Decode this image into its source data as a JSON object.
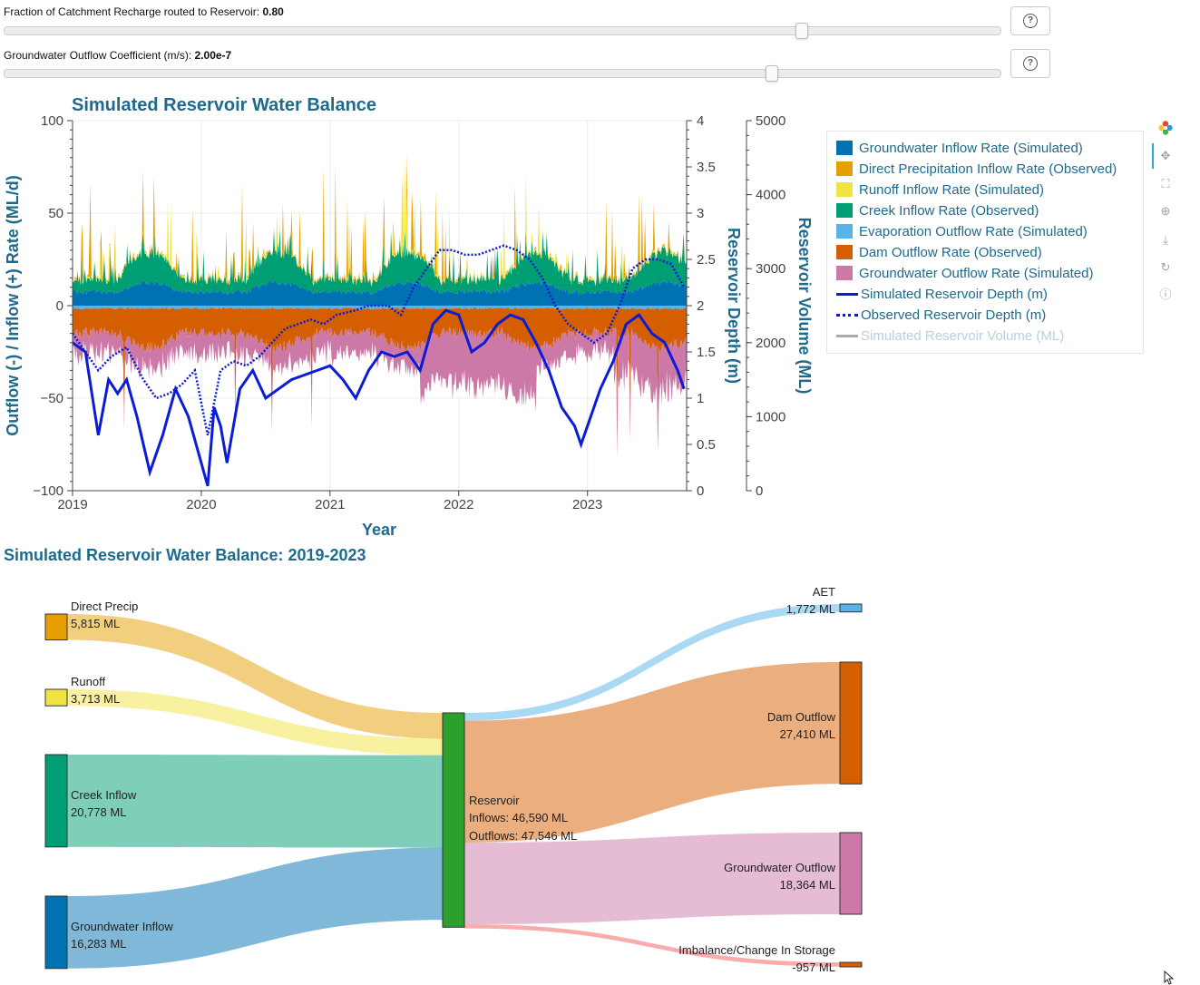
{
  "controls": {
    "slider1": {
      "label": "Fraction of Catchment Recharge routed to Reservoir:",
      "value": "0.80",
      "fraction": 0.8
    },
    "slider2": {
      "label": "Groundwater Outflow Coefficient (m/s):",
      "value": "2.00e-7",
      "fraction": 0.77
    },
    "help_icon": "question-circle-icon"
  },
  "chart_data": {
    "type": "area",
    "title": "Simulated Reservoir Water Balance",
    "xlabel": "Year",
    "ylabel_left": "Outflow (-) / Inflow (+) Rate (ML/d)",
    "ylabel_right1": "Reservoir Depth (m)",
    "ylabel_right2": "Reservoir Volume (ML)",
    "ylim_left": [
      -100,
      100
    ],
    "ylim_depth": [
      0,
      4
    ],
    "ylim_volume": [
      0,
      5000
    ],
    "x_ticks": [
      "2019",
      "2020",
      "2021",
      "2022",
      "2023"
    ],
    "y_ticks_left": [
      "100",
      "50",
      "0",
      "−50",
      "−100"
    ],
    "y_ticks_depth": [
      "4",
      "3.5",
      "3",
      "2.5",
      "2",
      "1.5",
      "1",
      "0.5",
      "0"
    ],
    "y_ticks_volume": [
      "5000",
      "4000",
      "3000",
      "2000",
      "1000",
      "0"
    ],
    "grid": true,
    "legend_position": "right",
    "colors": {
      "groundwater_inflow": "#0072b2",
      "direct_precip": "#e69f00",
      "runoff": "#f0e442",
      "creek": "#009e73",
      "evaporation": "#56b4e9",
      "dam_outflow": "#d55e00",
      "groundwater_outflow": "#cc79a7",
      "sim_depth": "#0b1bd6",
      "obs_depth": "#0b1bd6",
      "sim_volume": "#aaaaaa"
    },
    "legend": [
      {
        "label": "Groundwater Inflow Rate (Simulated)",
        "kind": "fill",
        "color": "#0072b2"
      },
      {
        "label": "Direct Precipitation Inflow Rate (Observed)",
        "kind": "fill",
        "color": "#e69f00"
      },
      {
        "label": "Runoff Inflow Rate (Simulated)",
        "kind": "fill",
        "color": "#f0e442"
      },
      {
        "label": "Creek Inflow Rate (Observed)",
        "kind": "fill",
        "color": "#009e73"
      },
      {
        "label": "Evaporation Outflow Rate (Simulated)",
        "kind": "fill",
        "color": "#56b4e9"
      },
      {
        "label": "Dam Outflow Rate (Observed)",
        "kind": "fill",
        "color": "#d55e00"
      },
      {
        "label": "Groundwater Outflow Rate (Simulated)",
        "kind": "fill",
        "color": "#cc79a7"
      },
      {
        "label": "Simulated Reservoir Depth (m)",
        "kind": "line",
        "color": "#0b1bd6"
      },
      {
        "label": "Observed Reservoir Depth (m)",
        "kind": "dotted",
        "color": "#0b1bd6"
      },
      {
        "label": "Simulated Reservoir Volume (ML)",
        "kind": "line",
        "color": "#aaaaaa",
        "muted": true
      }
    ],
    "series": [
      {
        "name": "Simulated Reservoir Depth (m)",
        "x": [
          2019.0,
          2019.1,
          2019.2,
          2019.28,
          2019.35,
          2019.42,
          2019.5,
          2019.6,
          2019.7,
          2019.8,
          2019.9,
          2020.0,
          2020.05,
          2020.1,
          2020.15,
          2020.2,
          2020.3,
          2020.4,
          2020.5,
          2020.6,
          2020.7,
          2020.8,
          2020.9,
          2021.0,
          2021.1,
          2021.2,
          2021.3,
          2021.4,
          2021.5,
          2021.6,
          2021.7,
          2021.8,
          2021.9,
          2022.0,
          2022.1,
          2022.2,
          2022.3,
          2022.4,
          2022.5,
          2022.6,
          2022.7,
          2022.8,
          2022.9,
          2022.95,
          2023.0,
          2023.1,
          2023.2,
          2023.3,
          2023.4,
          2023.5,
          2023.6,
          2023.7,
          2023.75
        ],
        "y": [
          1.6,
          1.5,
          0.6,
          1.2,
          1.05,
          1.2,
          0.8,
          0.2,
          0.6,
          1.1,
          0.8,
          0.3,
          0.05,
          0.9,
          0.7,
          0.3,
          1.1,
          1.3,
          1.0,
          1.1,
          1.2,
          1.25,
          1.3,
          1.35,
          1.2,
          1.0,
          1.3,
          1.5,
          1.45,
          1.5,
          1.3,
          1.8,
          1.95,
          1.9,
          1.5,
          1.6,
          1.8,
          1.9,
          1.85,
          1.6,
          1.3,
          0.9,
          0.7,
          0.5,
          0.7,
          1.1,
          1.4,
          1.8,
          1.9,
          1.7,
          1.6,
          1.3,
          1.1
        ]
      },
      {
        "name": "Observed Reservoir Depth (m)",
        "x": [
          2019.0,
          2019.1,
          2019.2,
          2019.3,
          2019.42,
          2019.55,
          2019.65,
          2019.75,
          2019.85,
          2019.95,
          2020.05,
          2020.15,
          2020.25,
          2020.35,
          2020.45,
          2020.55,
          2020.65,
          2020.75,
          2020.85,
          2020.95,
          2021.05,
          2021.2,
          2021.3,
          2021.45,
          2021.55,
          2021.65,
          2021.75,
          2021.85,
          2021.95,
          2022.05,
          2022.15,
          2022.25,
          2022.35,
          2022.45,
          2022.55,
          2022.65,
          2022.75,
          2022.85,
          2022.95,
          2023.05,
          2023.15,
          2023.25,
          2023.35,
          2023.45,
          2023.55,
          2023.65,
          2023.75
        ],
        "y": [
          1.7,
          1.5,
          1.3,
          1.45,
          1.55,
          1.2,
          1.0,
          1.05,
          1.15,
          1.3,
          0.6,
          1.3,
          1.4,
          1.35,
          1.45,
          1.6,
          1.75,
          1.8,
          1.85,
          1.8,
          1.9,
          1.95,
          2.0,
          2.0,
          1.9,
          2.2,
          2.4,
          2.6,
          2.6,
          2.55,
          2.55,
          2.6,
          2.65,
          2.6,
          2.5,
          2.3,
          2.0,
          1.8,
          1.7,
          1.6,
          1.7,
          2.0,
          2.4,
          2.5,
          2.5,
          2.45,
          2.2
        ]
      }
    ]
  },
  "toolbar": {
    "logo": "bokeh-logo-icon",
    "tools": [
      "pan-icon",
      "box-zoom-icon",
      "wheel-zoom-icon",
      "save-icon",
      "reset-icon",
      "help-icon"
    ]
  },
  "sankey": {
    "title": "Simulated Reservoir Water Balance: 2019-2023",
    "sources": [
      {
        "name": "Direct Precip",
        "value": "5,815 ML",
        "amount": 5815,
        "color": "#e69f00"
      },
      {
        "name": "Runoff",
        "value": "3,713 ML",
        "amount": 3713,
        "color": "#f0e442"
      },
      {
        "name": "Creek Inflow",
        "value": "20,778 ML",
        "amount": 20778,
        "color": "#009e73"
      },
      {
        "name": "Groundwater Inflow",
        "value": "16,283 ML",
        "amount": 16283,
        "color": "#0072b2"
      }
    ],
    "center": {
      "name": "Reservoir",
      "inflows": "Inflows: 46,590 ML",
      "outflows": "Outflows: 47,546 ML",
      "color": "#2ca02c"
    },
    "targets": [
      {
        "name": "AET",
        "value": "1,772 ML",
        "amount": 1772,
        "color": "#56b4e9"
      },
      {
        "name": "Dam Outflow",
        "value": "27,410 ML",
        "amount": 27410,
        "color": "#d55e00"
      },
      {
        "name": "Groundwater Outflow",
        "value": "18,364 ML",
        "amount": 18364,
        "color": "#cc79a7"
      },
      {
        "name": "Imbalance/Change In Storage",
        "value": "-957 ML",
        "amount": -957,
        "color": "#f25c5c"
      }
    ]
  }
}
